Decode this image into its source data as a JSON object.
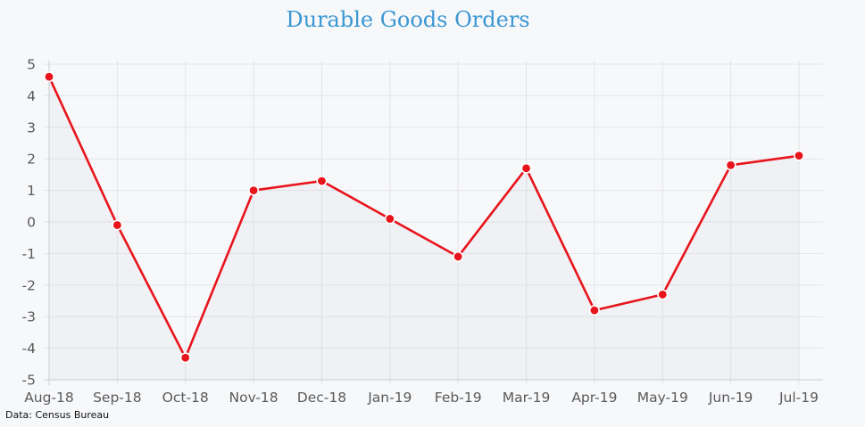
{
  "chart_data": {
    "type": "line",
    "title": "Durable Goods Orders",
    "xlabel": "",
    "ylabel": "",
    "categories": [
      "Aug-18",
      "Sep-18",
      "Oct-18",
      "Nov-18",
      "Dec-18",
      "Jan-19",
      "Feb-19",
      "Mar-19",
      "Apr-19",
      "May-19",
      "Jun-19",
      "Jul-19"
    ],
    "series": [
      {
        "values": [
          4.6,
          -0.1,
          -4.3,
          1.0,
          1.3,
          0.1,
          -1.1,
          1.7,
          -2.8,
          -2.3,
          1.8,
          2.1
        ],
        "color": "#e8141c"
      }
    ],
    "ylim": [
      -5,
      5
    ],
    "yticks": [
      5,
      4,
      3,
      2,
      1,
      0,
      -1,
      -2,
      -3,
      -4,
      -5
    ],
    "grid": true,
    "legend": "none"
  },
  "source_note": "Data: Census Bureau",
  "colors": {
    "title": "#3b97d3",
    "line": "#e8141c",
    "background": "#f7f8fa"
  }
}
